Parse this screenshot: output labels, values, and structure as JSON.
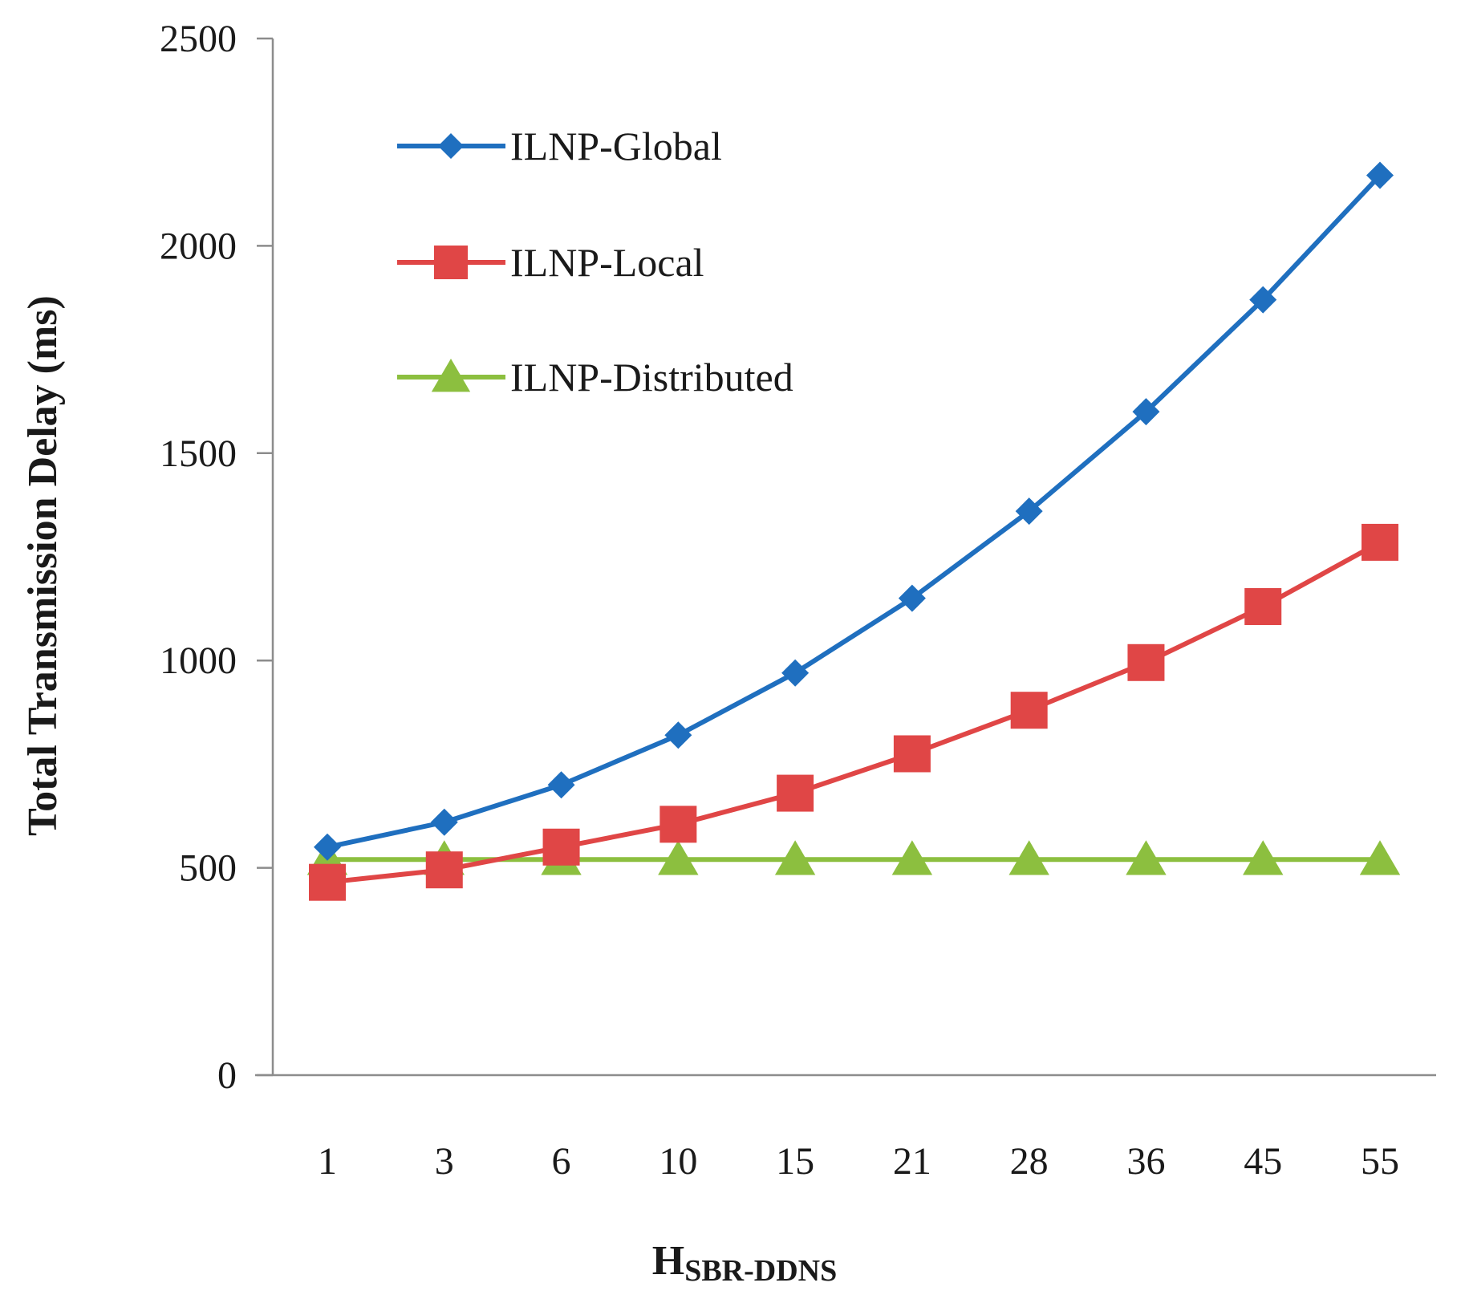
{
  "chart_data": {
    "type": "line",
    "categories": [
      "1",
      "3",
      "6",
      "10",
      "15",
      "21",
      "28",
      "36",
      "45",
      "55"
    ],
    "ylabel": "Total Transmission Delay (ms)",
    "xlabel_main": "H",
    "xlabel_sub": "SBR-DDNS",
    "ylim": [
      0,
      2500
    ],
    "yticks": [
      "0",
      "500",
      "1000",
      "1500",
      "2000",
      "2500"
    ],
    "grid": false,
    "legend_position": "top-left",
    "series": [
      {
        "name": "ILNP-Global",
        "color": "#1f6fbf",
        "marker": "diamond",
        "values": [
          550,
          610,
          700,
          820,
          970,
          1150,
          1360,
          1600,
          1870,
          2170
        ]
      },
      {
        "name": "ILNP-Local",
        "color": "#e04646",
        "marker": "square",
        "values": [
          465,
          495,
          550,
          605,
          680,
          775,
          880,
          995,
          1130,
          1285
        ]
      },
      {
        "name": "ILNP-Distributed",
        "color": "#8cbf3f",
        "marker": "triangle",
        "values": [
          520,
          520,
          520,
          520,
          520,
          520,
          520,
          520,
          520,
          520
        ]
      }
    ]
  }
}
